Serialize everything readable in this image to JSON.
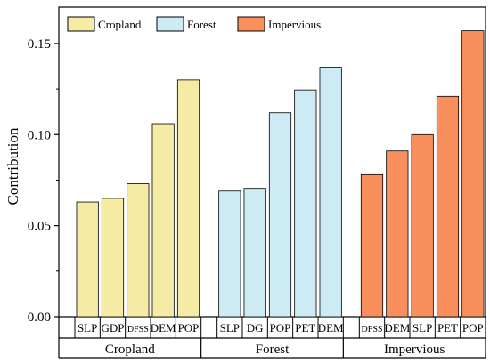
{
  "chart_data": {
    "type": "bar",
    "ylabel": "Contribution",
    "ylim": [
      0,
      0.17
    ],
    "yticks": [
      0.0,
      0.05,
      0.1,
      0.15
    ],
    "ytick_labels": [
      "0.00",
      "0.05",
      "0.10",
      "0.15"
    ],
    "legend_position": "top-left",
    "groups": [
      {
        "name": "Cropland",
        "color": "#f5eba5",
        "categories": [
          "SLP",
          "GDP",
          "DFSS",
          "DEM",
          "POP"
        ],
        "values": [
          0.063,
          0.065,
          0.073,
          0.106,
          0.13
        ]
      },
      {
        "name": "Forest",
        "color": "#cdebf5",
        "categories": [
          "SLP",
          "DG",
          "POP",
          "PET",
          "DEM"
        ],
        "values": [
          0.069,
          0.0705,
          0.112,
          0.1245,
          0.137
        ]
      },
      {
        "name": "Impervious",
        "color": "#f98f5d",
        "categories": [
          "DFSS",
          "DEM",
          "SLP",
          "PET",
          "POP"
        ],
        "values": [
          0.078,
          0.091,
          0.1,
          0.121,
          0.157
        ]
      }
    ]
  }
}
